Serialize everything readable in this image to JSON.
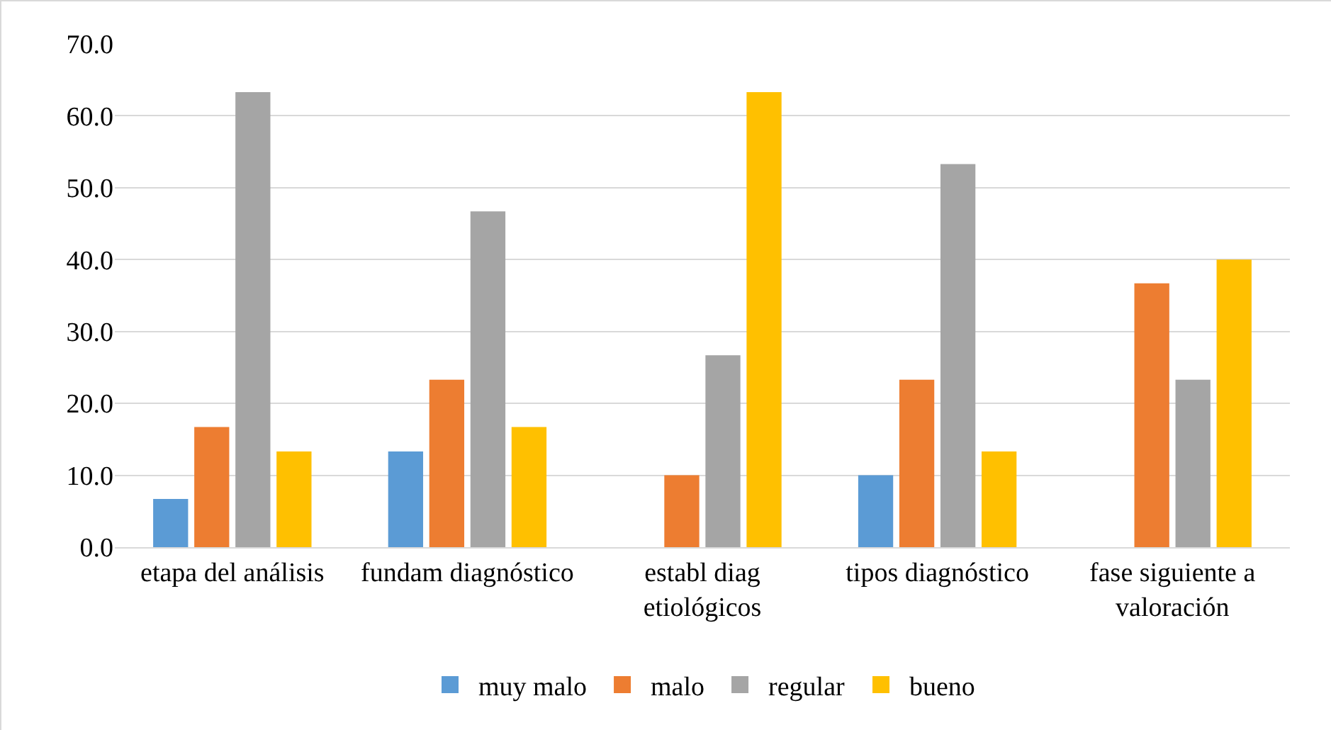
{
  "chart_data": {
    "type": "bar",
    "categories": [
      "etapa del análisis",
      "fundam diagnóstico",
      "establ diag etiológicos",
      "tipos diagnóstico",
      "fase siguiente a valoración"
    ],
    "series": [
      {
        "name": "muy malo",
        "color": "#5b9bd5",
        "values": [
          6.7,
          13.3,
          0,
          10.0,
          0
        ]
      },
      {
        "name": "malo",
        "color": "#ed7d31",
        "values": [
          16.7,
          23.3,
          10.0,
          23.3,
          36.7
        ]
      },
      {
        "name": "regular",
        "color": "#a5a5a5",
        "values": [
          63.3,
          46.7,
          26.7,
          53.3,
          23.3
        ]
      },
      {
        "name": "bueno",
        "color": "#ffc000",
        "values": [
          13.3,
          16.7,
          63.3,
          13.3,
          40.0
        ]
      }
    ],
    "ylim": [
      0,
      70
    ],
    "yticks": [
      {
        "value": 0,
        "label": "0.0"
      },
      {
        "value": 10,
        "label": "10.0"
      },
      {
        "value": 20,
        "label": "20.0"
      },
      {
        "value": 30,
        "label": "30.0"
      },
      {
        "value": 40,
        "label": "40.0"
      },
      {
        "value": 50,
        "label": "50.0"
      },
      {
        "value": 60,
        "label": "60.0"
      },
      {
        "value": 70,
        "label": "70.0"
      }
    ],
    "grid": "y",
    "legend": "bottom"
  }
}
